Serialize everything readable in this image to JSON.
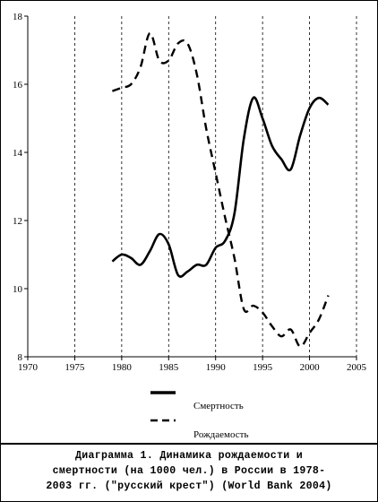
{
  "chart_data": {
    "type": "line",
    "x_ticks": [
      1970,
      1975,
      1980,
      1985,
      1990,
      1995,
      2000,
      2005
    ],
    "y_ticks": [
      8,
      10,
      12,
      14,
      16,
      18
    ],
    "xlim": [
      1970,
      2005
    ],
    "ylim": [
      8,
      18
    ],
    "grid": "vertical dashed lines at each x tick",
    "legend_position": "bottom",
    "series": [
      {
        "name": "Смертность",
        "style": "solid",
        "x": [
          1979,
          1980,
          1981,
          1982,
          1983,
          1984,
          1985,
          1986,
          1987,
          1988,
          1989,
          1990,
          1991,
          1992,
          1993,
          1994,
          1995,
          1996,
          1997,
          1998,
          1999,
          2000,
          2001,
          2002
        ],
        "y": [
          10.8,
          11.0,
          10.9,
          10.7,
          11.1,
          11.6,
          11.3,
          10.4,
          10.5,
          10.7,
          10.7,
          11.2,
          11.4,
          12.2,
          14.4,
          15.6,
          15.0,
          14.2,
          13.8,
          13.5,
          14.5,
          15.3,
          15.6,
          15.4
        ]
      },
      {
        "name": "Рождаемость",
        "style": "dashed",
        "x": [
          1979,
          1980,
          1981,
          1982,
          1983,
          1984,
          1985,
          1986,
          1987,
          1988,
          1989,
          1990,
          1991,
          1992,
          1993,
          1994,
          1995,
          1996,
          1997,
          1998,
          1999,
          2000,
          2001,
          2002
        ],
        "y": [
          15.8,
          15.9,
          16.0,
          16.5,
          17.5,
          16.7,
          16.7,
          17.2,
          17.2,
          16.3,
          14.7,
          13.4,
          12.1,
          10.9,
          9.4,
          9.5,
          9.3,
          8.9,
          8.6,
          8.8,
          8.3,
          8.7,
          9.1,
          9.8
        ]
      }
    ]
  },
  "legend": {
    "items": [
      "Смертность",
      "Рождаемость"
    ]
  },
  "caption": {
    "line1": "Диаграмма 1. Динамика рождаемости и",
    "line2": "смертности (на 1000 чел.) в России в 1978-",
    "line3": "2003 гг. (\"русский крест\") (World Bank 2004)"
  }
}
